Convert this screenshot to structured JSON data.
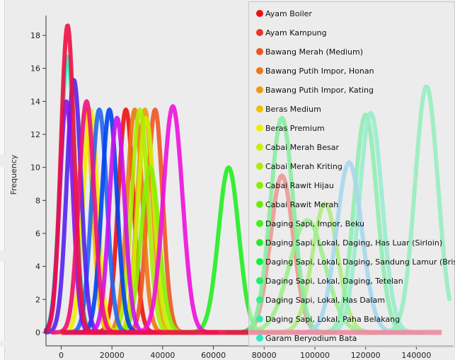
{
  "chart_data": {
    "type": "line",
    "title": "",
    "xlabel": "",
    "ylabel": "Frequency",
    "xlim": [
      -6000,
      153000
    ],
    "ylim": [
      -0.3,
      19.2
    ],
    "xticks": [
      0,
      20000,
      40000,
      60000,
      80000,
      100000,
      120000,
      140000
    ],
    "xtick_labels": [
      "0",
      "20000",
      "40000",
      "60000",
      "80000",
      "100000",
      "120000",
      "140000"
    ],
    "yticks": [
      0,
      2,
      4,
      6,
      8,
      10,
      12,
      14,
      16,
      18
    ],
    "ytick_labels": [
      "0",
      "2",
      "4",
      "6",
      "8",
      "10",
      "12",
      "14",
      "16",
      "18"
    ],
    "legend_position": "top-right",
    "series": [
      {
        "name": "Ayam Boiler",
        "color": "#ee1111",
        "curves": [
          {
            "peak": 13.5,
            "center": 25500,
            "sigma": 3000
          }
        ]
      },
      {
        "name": "Ayam Kampung",
        "color": "#ee3322",
        "curves": [
          {
            "peak": 9.5,
            "center": 87000,
            "sigma": 4500
          }
        ]
      },
      {
        "name": "Bawang Merah (Medium)",
        "color": "#ee5522",
        "curves": [
          {
            "peak": 13.5,
            "center": 37000,
            "sigma": 3000
          }
        ]
      },
      {
        "name": "Bawang Putih Impor, Honan",
        "color": "#ee7711",
        "curves": [
          {
            "peak": 13.5,
            "center": 29000,
            "sigma": 3000
          }
        ]
      },
      {
        "name": "Bawang Putih Impor, Kating",
        "color": "#f09a11",
        "curves": [
          {
            "peak": 13.5,
            "center": 33000,
            "sigma": 3000
          }
        ]
      },
      {
        "name": "Beras Medium",
        "color": "#f0c000",
        "curves": [
          {
            "peak": 13.5,
            "center": 9500,
            "sigma": 2800
          }
        ]
      },
      {
        "name": "Beras Premium",
        "color": "#eeee00",
        "curves": [
          {
            "peak": 13.5,
            "center": 11500,
            "sigma": 2800
          }
        ]
      },
      {
        "name": "Cabai Merah Besar",
        "color": "#ccee00",
        "curves": [
          {
            "peak": 13.0,
            "center": 33500,
            "sigma": 3200
          }
        ]
      },
      {
        "name": "Cabai Merah Kriting",
        "color": "#aaee00",
        "curves": [
          {
            "peak": 13.5,
            "center": 31000,
            "sigma": 3200
          }
        ]
      },
      {
        "name": "Cabai Rawit Hijau",
        "color": "#88ee00",
        "curves": [
          {
            "peak": 10.0,
            "center": 35000,
            "sigma": 3500
          }
        ]
      },
      {
        "name": "Cabai Rawit Merah",
        "color": "#66ee00",
        "curves": [
          {
            "peak": 7.8,
            "center": 104000,
            "sigma": 5000
          }
        ]
      },
      {
        "name": "Daging Sapi, Impor, Beku",
        "color": "#44ee22",
        "curves": [
          {
            "peak": 6.8,
            "center": 97000,
            "sigma": 7000
          }
        ]
      },
      {
        "name": "Daging Sapi, Lokal, Daging, Has Luar (Sirloin)",
        "color": "#22ee22",
        "curves": [
          {
            "peak": 10.0,
            "center": 66000,
            "sigma": 4000
          }
        ]
      },
      {
        "name": "Daging Sapi, Lokal, Daging, Sandung Lamur (Brisket)",
        "color": "#11ee44",
        "curves": [
          {
            "peak": 13.0,
            "center": 87000,
            "sigma": 4500
          }
        ]
      },
      {
        "name": "Daging Sapi, Lokal, Daging, Tetelan",
        "color": "#22ee66",
        "curves": [
          {
            "peak": 13.2,
            "center": 120000,
            "sigma": 4500
          }
        ]
      },
      {
        "name": "Daging Sapi, Lokal, Has Dalam",
        "color": "#33ee88",
        "curves": [
          {
            "peak": 14.9,
            "center": 144000,
            "sigma": 4500
          }
        ]
      },
      {
        "name": "Daging Sapi, Lokal, Paha Belakang",
        "color": "#33eeaa",
        "curves": [
          {
            "peak": 13.3,
            "center": 122000,
            "sigma": 4500
          }
        ]
      },
      {
        "name": "Garam Beryodium Bata",
        "color": "#22eebb",
        "curves": [
          {
            "peak": 16.7,
            "center": 2500,
            "sigma": 2800
          }
        ]
      },
      {
        "name": "",
        "color": "#55bbee",
        "curves": [
          {
            "peak": 10.3,
            "center": 113500,
            "sigma": 5000
          }
        ]
      },
      {
        "name": "",
        "color": "#2266ee",
        "curves": [
          {
            "peak": 13.5,
            "center": 15000,
            "sigma": 3000
          }
        ]
      },
      {
        "name": "",
        "color": "#0044ee",
        "curves": [
          {
            "peak": 13.5,
            "center": 19000,
            "sigma": 3000
          }
        ]
      },
      {
        "name": "",
        "color": "#5522ee",
        "curves": [
          {
            "peak": 15.3,
            "center": 5000,
            "sigma": 2800
          }
        ]
      },
      {
        "name": "",
        "color": "#8811ee",
        "curves": [
          {
            "peak": 14.0,
            "center": 2000,
            "sigma": 2600
          }
        ]
      },
      {
        "name": "",
        "color": "#cc11ee",
        "curves": [
          {
            "peak": 13.0,
            "center": 22000,
            "sigma": 3000
          }
        ]
      },
      {
        "name": "",
        "color": "#ee11dd",
        "curves": [
          {
            "peak": 13.7,
            "center": 44000,
            "sigma": 3800
          }
        ]
      },
      {
        "name": "",
        "color": "#ee1188",
        "curves": [
          {
            "peak": 14.0,
            "center": 10000,
            "sigma": 3000
          }
        ]
      },
      {
        "name": "",
        "color": "#ee1144",
        "curves": [
          {
            "peak": 18.6,
            "center": 2500,
            "sigma": 2600
          }
        ]
      }
    ]
  }
}
